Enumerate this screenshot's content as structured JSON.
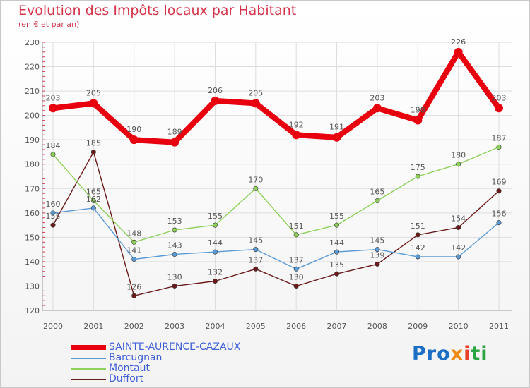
{
  "chart_data": {
    "type": "line",
    "title": "Evolution des Impôts locaux par Habitant",
    "subtitle": "(en € et par an)",
    "xlabel": "",
    "ylabel": "",
    "x": [
      "2000",
      "2001",
      "2002",
      "2003",
      "2004",
      "2005",
      "2006",
      "2007",
      "2008",
      "2009",
      "2010",
      "2011"
    ],
    "ylim": [
      120,
      230
    ],
    "yticks": [
      120,
      130,
      140,
      150,
      160,
      170,
      180,
      190,
      200,
      210,
      220,
      230
    ],
    "grid": true,
    "legend_position": "bottom-left",
    "series": [
      {
        "name": "SAINTE-AURENCE-CAZAUX",
        "color": "#e8000e",
        "values": [
          203,
          205,
          190,
          189,
          206,
          205,
          192,
          191,
          203,
          198,
          226,
          203
        ],
        "labels": [
          "203",
          "205",
          "190",
          "189",
          "206",
          "205",
          "192",
          "191",
          "203",
          "198",
          "226",
          "203"
        ]
      },
      {
        "name": "Barcugnan",
        "color": "#5b9bd5",
        "values": [
          160,
          162,
          141,
          143,
          144,
          145,
          137,
          144,
          145,
          142,
          142,
          156
        ],
        "labels": [
          "160",
          "162",
          "141",
          "143",
          "144",
          "145",
          "137",
          "144",
          "145",
          "142",
          "142",
          "156"
        ]
      },
      {
        "name": "Montaut",
        "color": "#8dd05a",
        "values": [
          184,
          165,
          148,
          153,
          155,
          170,
          151,
          155,
          165,
          175,
          180,
          187
        ],
        "labels": [
          "184",
          "165",
          "148",
          "153",
          "155",
          "170",
          "151",
          "155",
          "165",
          "175",
          "180",
          "187"
        ]
      },
      {
        "name": "Duffort",
        "color": "#6b1a1a",
        "values": [
          155,
          185,
          126,
          130,
          132,
          137,
          130,
          135,
          139,
          151,
          154,
          169
        ],
        "labels": [
          "155",
          "185",
          "126",
          "130",
          "132",
          "137",
          "130",
          "135",
          "139",
          "151",
          "154",
          "169"
        ]
      }
    ]
  },
  "brand": {
    "p1": "Pro",
    "p2": "x",
    "p3": "i",
    "p4": "ti"
  }
}
